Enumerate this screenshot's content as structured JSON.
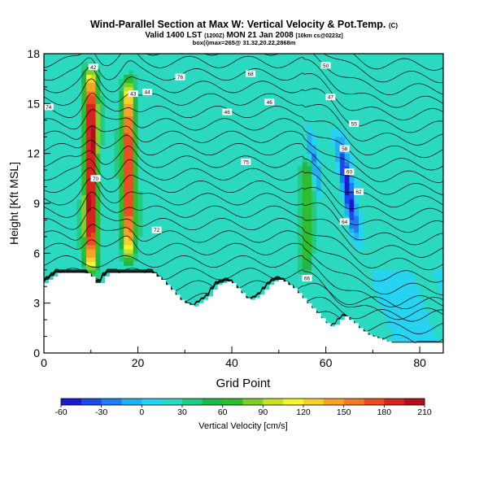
{
  "chart_data": {
    "type": "heatmap",
    "title": "Wind-Parallel Section at Max W: Vertical Velocity & Pot.Temp.",
    "title_mark": "(C)",
    "subtitle": "Valid 1400 LST",
    "subtitle_small_1": "(1200Z)",
    "subtitle_mid": "MON 21 Jan 2008",
    "subtitle_small_2": "[10km cs@0223z]",
    "subtitle2": "box(i)max=265@ 31.32,20.22,2868m",
    "xlabel": "Grid Point",
    "ylabel": "Height [Kft MSL]",
    "xlim": [
      0,
      85
    ],
    "ylim": [
      0,
      18
    ],
    "x_ticks": [
      0,
      20,
      40,
      60,
      80
    ],
    "y_ticks": [
      0,
      3,
      6,
      9,
      12,
      15,
      18
    ],
    "colorbar": {
      "label": "Vertical Velocity [cm/s]",
      "ticks": [
        -60,
        -30,
        0,
        30,
        60,
        90,
        120,
        150,
        180,
        210
      ],
      "min": -60,
      "max": 210,
      "colors": [
        "#1a1ad4",
        "#1e4ae6",
        "#1e7ef0",
        "#21b0f2",
        "#26d3f0",
        "#2ad9c0",
        "#22cc82",
        "#1eb84a",
        "#2fbd2f",
        "#7fcf2a",
        "#c8e02a",
        "#f5f52c",
        "#f8d02a",
        "#f5a427",
        "#ef7d25",
        "#e84e22",
        "#d4241f",
        "#b0101a"
      ]
    },
    "updrafts": [
      {
        "x": 10,
        "z_base": 4.5,
        "z_top": 17.5,
        "w_max": 205
      },
      {
        "x": 18,
        "z_base": 5.0,
        "z_top": 17.0,
        "w_max": 170
      },
      {
        "x": 56,
        "z_base": 4.5,
        "z_top": 12.0,
        "w_max": 60
      }
    ],
    "downdrafts": [
      {
        "x": 67,
        "z_base": 6.0,
        "z_top": 13.5,
        "w_min": -55
      },
      {
        "x": 59,
        "z_base": 9.0,
        "z_top": 14.0,
        "w_min": -30
      }
    ],
    "terrain_height": [
      4.2,
      4.4,
      4.6,
      4.8,
      4.8,
      4.8,
      4.8,
      4.8,
      4.8,
      4.8,
      4.6,
      4.2,
      4.2,
      4.6,
      4.8,
      4.8,
      4.8,
      4.8,
      4.8,
      4.8,
      4.8,
      4.8,
      4.8,
      4.8,
      4.6,
      4.4,
      4.1,
      3.8,
      3.5,
      3.2,
      3.0,
      2.9,
      2.8,
      3.0,
      3.2,
      3.4,
      3.8,
      4.1,
      4.2,
      4.3,
      4.2,
      3.9,
      3.6,
      3.3,
      3.2,
      3.3,
      3.5,
      3.8,
      4.1,
      4.3,
      4.4,
      4.3,
      4.1,
      3.9,
      3.6,
      3.3,
      3.0,
      2.7,
      2.4,
      2.1,
      1.8,
      1.6,
      1.7,
      2.0,
      2.2,
      2.0,
      1.8,
      1.5,
      1.3,
      1.1,
      1.0,
      0.9,
      0.8,
      0.7,
      0.6,
      0.6,
      0.6,
      0.6,
      0.6,
      0.6,
      0.6,
      0.6,
      0.6,
      0.6,
      0.6,
      0.6
    ],
    "contour_labels": [
      "42",
      "43",
      "44",
      "46",
      "46",
      "47",
      "50",
      "55",
      "58",
      "60",
      "62",
      "64",
      "66",
      "68",
      "70",
      "72",
      "74",
      "75",
      "76"
    ]
  }
}
